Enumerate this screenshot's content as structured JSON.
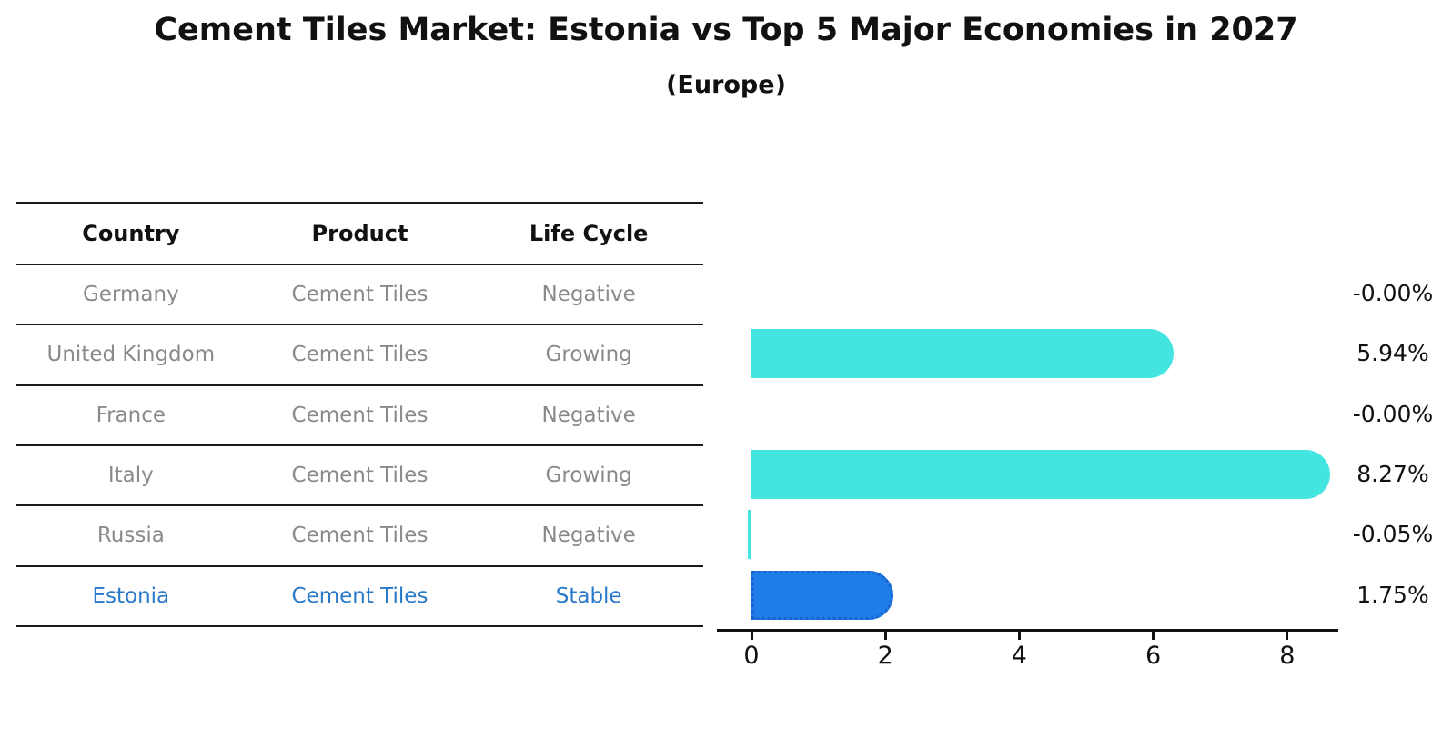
{
  "title": "Cement Tiles Market: Estonia vs Top 5 Major Economies in 2027",
  "subtitle": "(Europe)",
  "table": {
    "headers": [
      "Country",
      "Product",
      "Life Cycle"
    ],
    "rows": [
      {
        "country": "Germany",
        "product": "Cement Tiles",
        "life_cycle": "Negative"
      },
      {
        "country": "United Kingdom",
        "product": "Cement Tiles",
        "life_cycle": "Growing"
      },
      {
        "country": "France",
        "product": "Cement Tiles",
        "life_cycle": "Negative"
      },
      {
        "country": "Italy",
        "product": "Cement Tiles",
        "life_cycle": "Growing"
      },
      {
        "country": "Russia",
        "product": "Cement Tiles",
        "life_cycle": "Negative"
      },
      {
        "country": "Estonia",
        "product": "Cement Tiles",
        "life_cycle": "Stable"
      }
    ],
    "highlight_row": "Estonia"
  },
  "chart_data": {
    "type": "bar",
    "orientation": "horizontal",
    "title": "Cement Tiles Market: Estonia vs Top 5 Major Economies in 2027 (Europe)",
    "categories": [
      "Germany",
      "United Kingdom",
      "France",
      "Italy",
      "Russia",
      "Estonia"
    ],
    "values": [
      -0.0,
      5.94,
      -0.0,
      8.27,
      -0.05,
      1.75
    ],
    "value_labels": [
      "-0.00%",
      "5.94%",
      "-0.00%",
      "8.27%",
      "-0.05%",
      "1.75%"
    ],
    "xlabel": "",
    "ylabel": "",
    "xticks": [
      0,
      2,
      4,
      6,
      8
    ],
    "xlim": [
      -0.5,
      8.75
    ],
    "grid": false,
    "legend": false,
    "bar_color": "#44E5E1",
    "highlight_bar_color": "#1E7DE8",
    "highlight_index": 5
  },
  "colors": {
    "background": "#ffffff",
    "title_text": "#111111",
    "table_line": "#1a1a1a",
    "row_text": "#8a8a8a",
    "highlight_text": "#2879c9",
    "highlight_bar_border": "#1a63cf",
    "axis": "#111111"
  }
}
